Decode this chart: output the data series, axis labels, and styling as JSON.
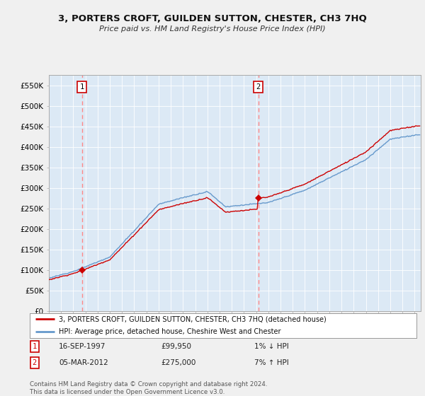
{
  "title": "3, PORTERS CROFT, GUILDEN SUTTON, CHESTER, CH3 7HQ",
  "subtitle": "Price paid vs. HM Land Registry's House Price Index (HPI)",
  "ylim": [
    0,
    575000
  ],
  "yticks": [
    0,
    50000,
    100000,
    150000,
    200000,
    250000,
    300000,
    350000,
    400000,
    450000,
    500000,
    550000
  ],
  "ytick_labels": [
    "£0",
    "£50K",
    "£100K",
    "£150K",
    "£200K",
    "£250K",
    "£300K",
    "£350K",
    "£400K",
    "£450K",
    "£500K",
    "£550K"
  ],
  "sale1_date": "16-SEP-1997",
  "sale1_price": 99950,
  "sale1_hpi_text": "1% ↓ HPI",
  "sale1_year": 1997.71,
  "sale2_date": "05-MAR-2012",
  "sale2_price": 275000,
  "sale2_hpi_text": "7% ↑ HPI",
  "sale2_year": 2012.18,
  "legend_label1": "3, PORTERS CROFT, GUILDEN SUTTON, CHESTER, CH3 7HQ (detached house)",
  "legend_label2": "HPI: Average price, detached house, Cheshire West and Chester",
  "footnote": "Contains HM Land Registry data © Crown copyright and database right 2024.\nThis data is licensed under the Open Government Licence v3.0.",
  "sale_color": "#cc0000",
  "hpi_color": "#6699cc",
  "bg_color": "#f0f0f0",
  "plot_bg": "#dce9f5",
  "grid_color": "#ffffff",
  "dashed_line_color": "#ff8888",
  "xlim_start": 1995,
  "xlim_end": 2025.5
}
